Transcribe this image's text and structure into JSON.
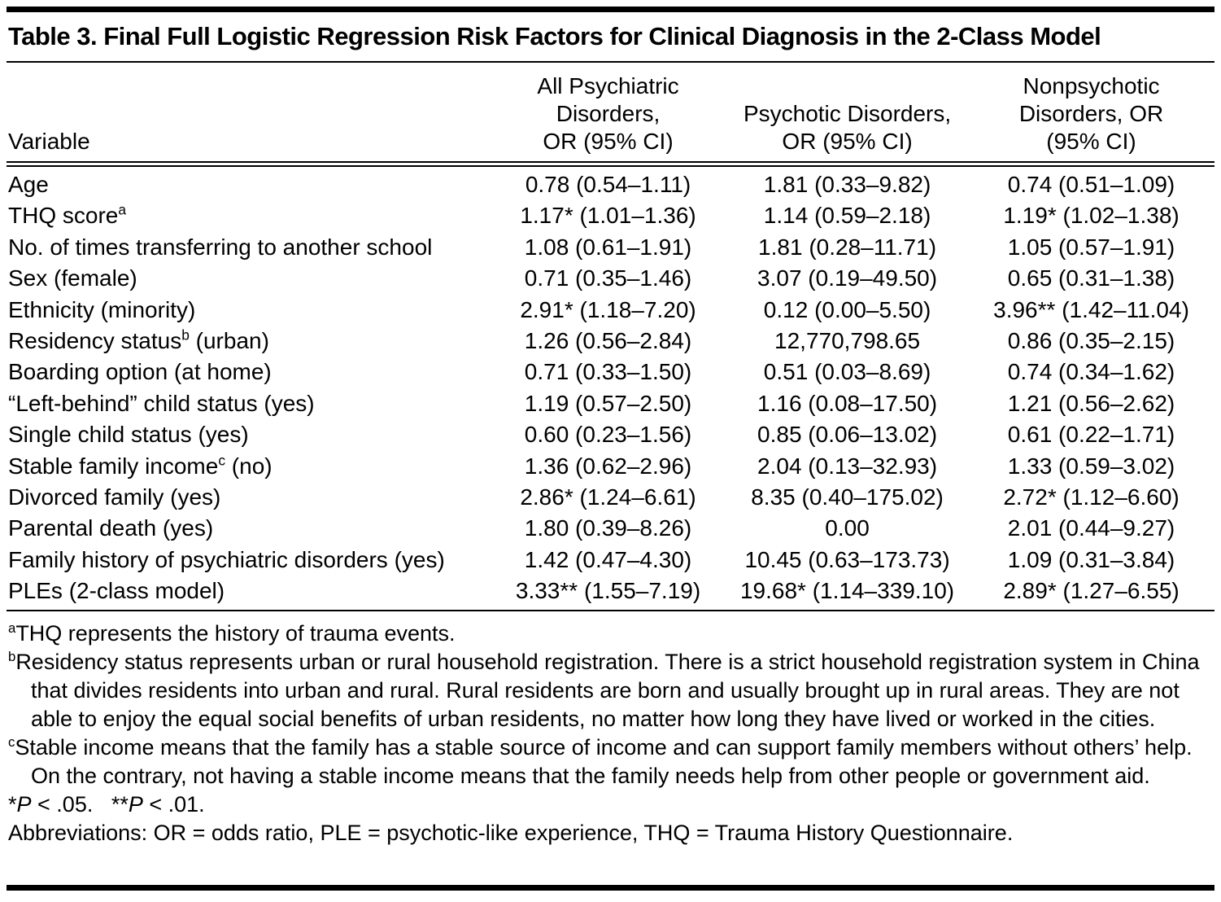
{
  "title": "Table 3. Final Full Logistic Regression Risk Factors for Clinical Diagnosis in the 2-Class Model",
  "table": {
    "columns": [
      {
        "key": "variable",
        "lines": [
          "Variable"
        ]
      },
      {
        "key": "all-psychiatric-disorders",
        "lines": [
          "All Psychiatric",
          "Disorders,",
          "OR (95% CI)"
        ]
      },
      {
        "key": "psychotic-disorders",
        "lines": [
          "Psychotic Disorders,",
          "OR (95% CI)"
        ]
      },
      {
        "key": "nonpsychotic-disorders",
        "lines": [
          "Nonpsychotic",
          "Disorders, OR",
          "(95% CI)"
        ]
      }
    ],
    "rows": [
      {
        "variable": "Age",
        "all_psychiatric": "0.78 (0.54–1.11)",
        "psychotic": "1.81 (0.33–9.82)",
        "nonpsychotic": "0.74 (0.51–1.09)"
      },
      {
        "variable": "THQ score^a",
        "all_psychiatric": "1.17* (1.01–1.36)",
        "psychotic": "1.14 (0.59–2.18)",
        "nonpsychotic": "1.19* (1.02–1.38)"
      },
      {
        "variable": "No. of times transferring to another school",
        "all_psychiatric": "1.08 (0.61–1.91)",
        "psychotic": "1.81 (0.28–11.71)",
        "nonpsychotic": "1.05 (0.57–1.91)"
      },
      {
        "variable": "Sex (female)",
        "all_psychiatric": "0.71 (0.35–1.46)",
        "psychotic": "3.07 (0.19–49.50)",
        "nonpsychotic": "0.65 (0.31–1.38)"
      },
      {
        "variable": "Ethnicity (minority)",
        "all_psychiatric": "2.91* (1.18–7.20)",
        "psychotic": "0.12 (0.00–5.50)",
        "nonpsychotic": "3.96** (1.42–11.04)"
      },
      {
        "variable": "Residency status^b (urban)",
        "all_psychiatric": "1.26 (0.56–2.84)",
        "psychotic": "12,770,798.65",
        "nonpsychotic": "0.86 (0.35–2.15)"
      },
      {
        "variable": "Boarding option (at home)",
        "all_psychiatric": "0.71 (0.33–1.50)",
        "psychotic": "0.51 (0.03–8.69)",
        "nonpsychotic": "0.74 (0.34–1.62)"
      },
      {
        "variable": "“Left-behind” child status (yes)",
        "all_psychiatric": "1.19 (0.57–2.50)",
        "psychotic": "1.16 (0.08–17.50)",
        "nonpsychotic": "1.21 (0.56–2.62)"
      },
      {
        "variable": "Single child status (yes)",
        "all_psychiatric": "0.60 (0.23–1.56)",
        "psychotic": "0.85 (0.06–13.02)",
        "nonpsychotic": "0.61 (0.22–1.71)"
      },
      {
        "variable": "Stable family income^c (no)",
        "all_psychiatric": "1.36 (0.62–2.96)",
        "psychotic": "2.04 (0.13–32.93)",
        "nonpsychotic": "1.33 (0.59–3.02)"
      },
      {
        "variable": "Divorced family (yes)",
        "all_psychiatric": "2.86* (1.24–6.61)",
        "psychotic": "8.35 (0.40–175.02)",
        "nonpsychotic": "2.72* (1.12–6.60)"
      },
      {
        "variable": "Parental death (yes)",
        "all_psychiatric": "1.80 (0.39–8.26)",
        "psychotic": "0.00",
        "nonpsychotic": "2.01 (0.44–9.27)"
      },
      {
        "variable": "Family history of psychiatric disorders (yes)",
        "all_psychiatric": "1.42 (0.47–4.30)",
        "psychotic": "10.45 (0.63–173.73)",
        "nonpsychotic": "1.09 (0.31–3.84)"
      },
      {
        "variable": "PLEs (2-class model)",
        "all_psychiatric": "3.33** (1.55–7.19)",
        "psychotic": "19.68* (1.14–339.10)",
        "nonpsychotic": "2.89* (1.27–6.55)"
      }
    ]
  },
  "footnotes": [
    {
      "marker": "a",
      "text": "THQ represents the history of trauma events."
    },
    {
      "marker": "b",
      "text": "Residency status represents urban or rural household registration. There is a strict household registration system in China that divides residents into urban and rural. Rural residents are born and usually brought up in rural areas. They are not able to enjoy the equal social benefits of urban residents, no matter how long they have lived or worked in the cities."
    },
    {
      "marker": "c",
      "text": "Stable income means that the family has a stable source of income and can support family members without others’ help. On the contrary, not having a stable income means that the family needs help from other people or government aid."
    }
  ],
  "significance": [
    {
      "text": "*"
    },
    {
      "text": "P",
      "italic": true
    },
    {
      "text": " < .05.   **"
    },
    {
      "text": "P",
      "italic": true
    },
    {
      "text": " < .01."
    }
  ],
  "abbreviations": "Abbreviations: OR = odds ratio, PLE = psychotic-like experience, THQ = Trauma History Questionnaire."
}
